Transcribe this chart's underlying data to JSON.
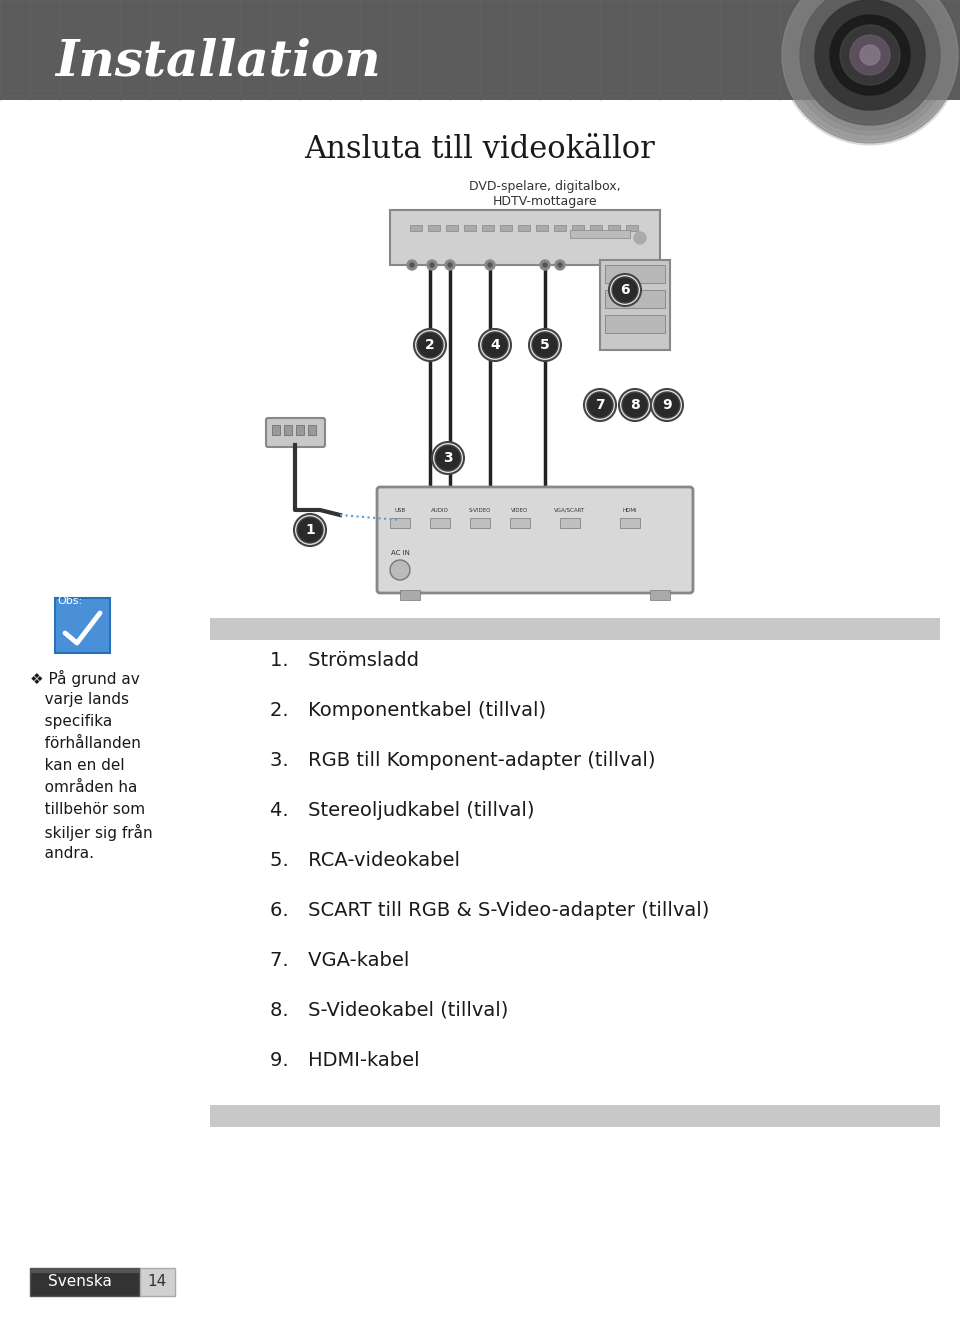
{
  "title": "Installation",
  "subtitle": "Ansluta till videokällor",
  "dvd_label_line1": "DVD-spelare, digitalbox,",
  "dvd_label_line2": "HDTV-mottagare",
  "note_text": "❖ På grund av\n  varje lands\n  specifika\n  förhållanden\n  kan en del\n  områden ha\n  tillbehör som\n  skiljer sig från\n  andra.",
  "obs_label": "Obs:",
  "list_items": [
    "Strömsladd",
    "Komponentkabel (tillval)",
    "RGB till Komponent-adapter (tillval)",
    "Stereoljudkabel (tillval)",
    "RCA-videokabel",
    "SCART till RGB & S-Video-adapter (tillval)",
    "VGA-kabel",
    "S-Videokabel (tillval)",
    "HDMI-kabel"
  ],
  "header_bg": "#5a5a5a",
  "header_text_color": "#ffffff",
  "page_bg": "#ffffff",
  "body_bg": "#ffffff",
  "list_bar_color": "#d0d0d0",
  "list_text_color": "#1a1a1a",
  "footer_text": "Svenska",
  "page_number": "14",
  "note_bg": "#4a90d9",
  "circle_color": "#2a6aad",
  "circle_text_color": "#ffffff"
}
